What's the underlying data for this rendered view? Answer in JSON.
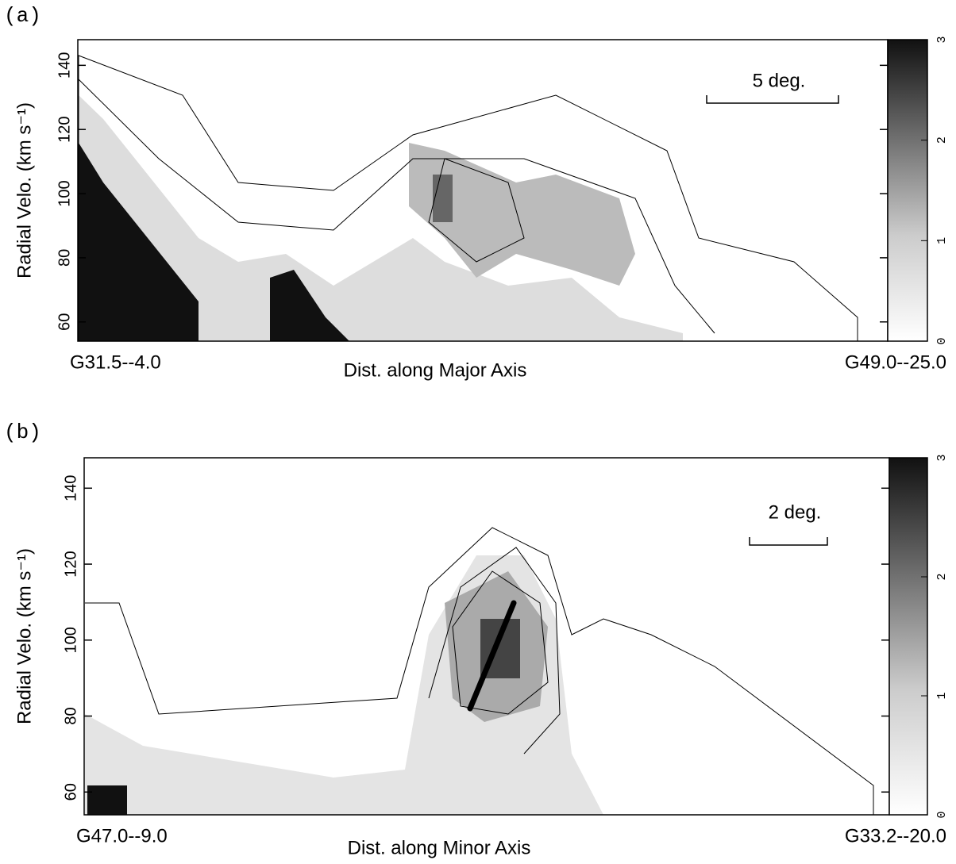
{
  "chart_data": [
    {
      "type": "contour",
      "panel_label": "(a)",
      "ylabel": "Radial Velo. (km s⁻¹)",
      "xlabel": "Dist. along Major Axis",
      "x_start_label": "G31.5--4.0",
      "x_end_label": "G49.0--25.0",
      "scale_bar_label": "5 deg.",
      "ylim": [
        54,
        148
      ],
      "yticks": [
        60,
        80,
        100,
        120,
        140
      ],
      "colorbar_lim": [
        0,
        3
      ],
      "colorbar_ticks": [
        0,
        1,
        2,
        3
      ]
    },
    {
      "type": "contour",
      "panel_label": "(b)",
      "ylabel": "Radial Velo. (km s⁻¹)",
      "xlabel": "Dist. along Minor Axis",
      "x_start_label": "G47.0--9.0",
      "x_end_label": "G33.2--20.0",
      "scale_bar_label": "2 deg.",
      "ylim": [
        54,
        148
      ],
      "yticks": [
        60,
        80,
        100,
        120,
        140
      ],
      "colorbar_lim": [
        0,
        3
      ],
      "colorbar_ticks": [
        0,
        1,
        2,
        3
      ]
    }
  ]
}
